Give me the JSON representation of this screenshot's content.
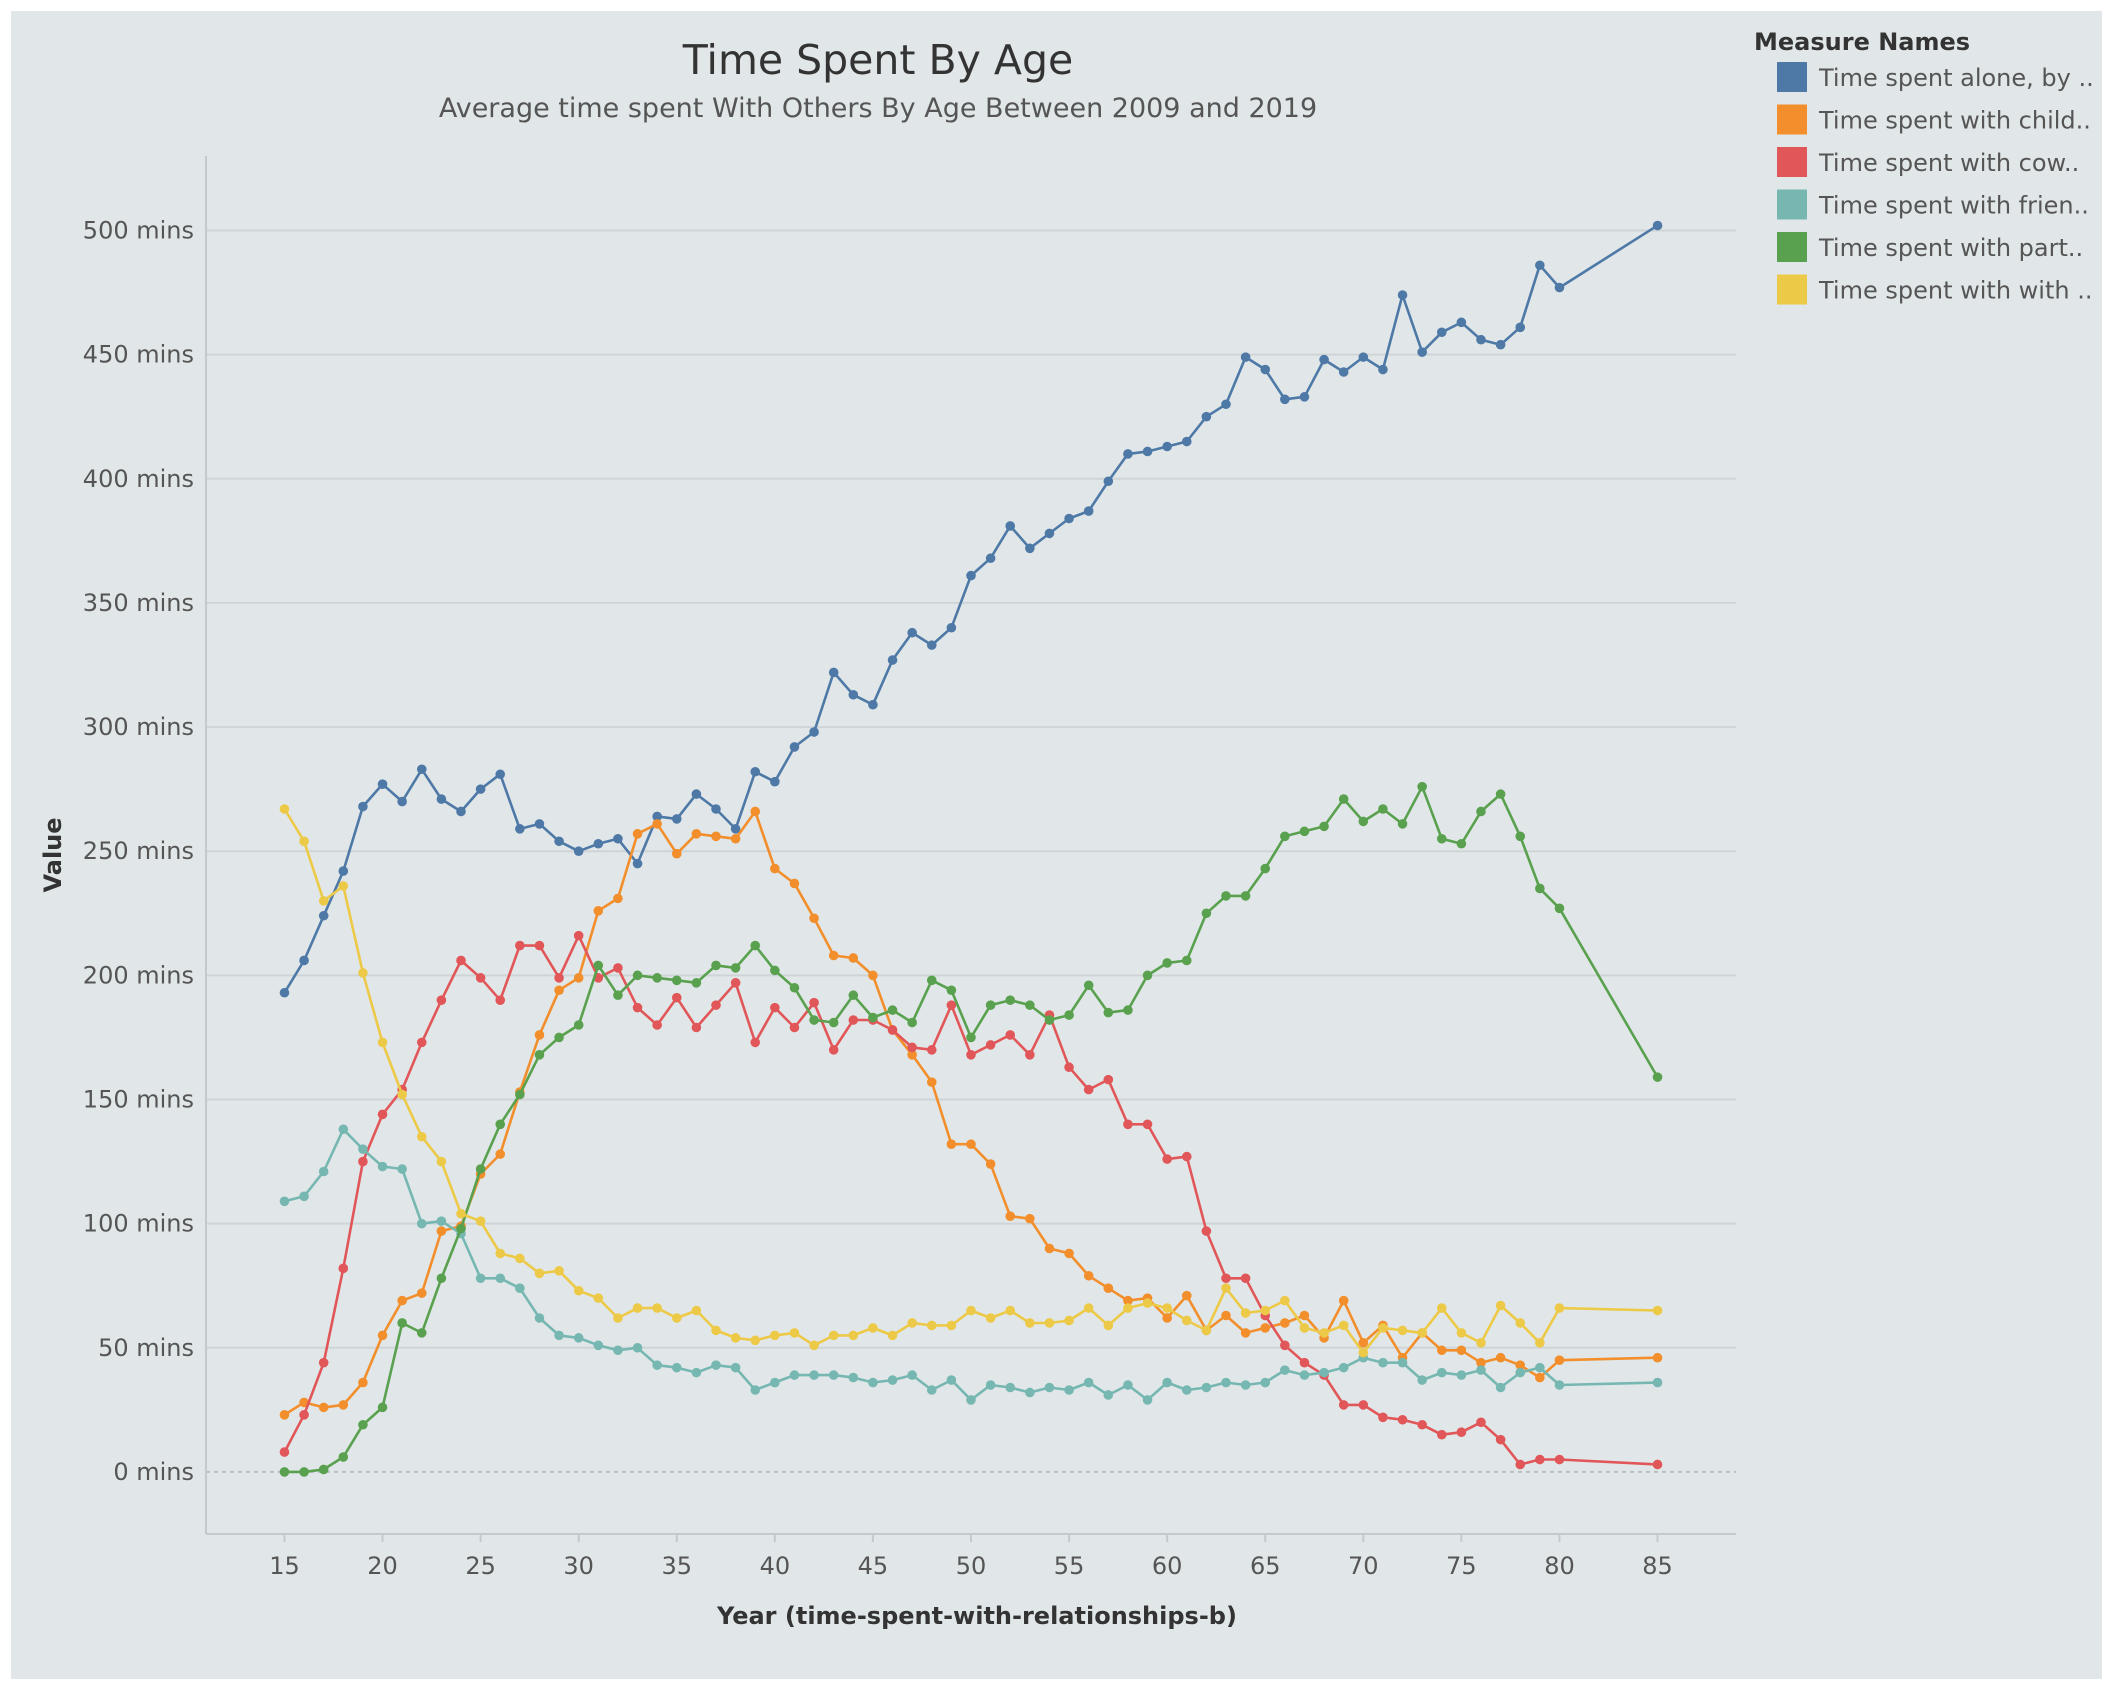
{
  "chart_data": {
    "type": "line",
    "title": "Time Spent By Age",
    "subtitle": "Average time spent With Others By Age Between 2009 and 2019",
    "xlabel": "Year (time-spent-with-relationships-b)",
    "ylabel": "Value",
    "xlim": [
      11,
      89
    ],
    "ylim": [
      -25,
      530
    ],
    "x_ticks": [
      15,
      20,
      25,
      30,
      35,
      40,
      45,
      50,
      55,
      60,
      65,
      70,
      75,
      80,
      85
    ],
    "y_ticks": [
      {
        "value": 0,
        "label": "0 mins"
      },
      {
        "value": 50,
        "label": "50 mins"
      },
      {
        "value": 100,
        "label": "100 mins"
      },
      {
        "value": 150,
        "label": "150 mins"
      },
      {
        "value": 200,
        "label": "200 mins"
      },
      {
        "value": 250,
        "label": "250 mins"
      },
      {
        "value": 300,
        "label": "300 mins"
      },
      {
        "value": 350,
        "label": "350 mins"
      },
      {
        "value": 400,
        "label": "400 mins"
      },
      {
        "value": 450,
        "label": "450 mins"
      },
      {
        "value": 500,
        "label": "500 mins"
      }
    ],
    "grid": true,
    "legend_position": "top-right",
    "legend_title": "Measure Names",
    "x": [
      15,
      16,
      17,
      18,
      19,
      20,
      21,
      22,
      23,
      24,
      25,
      26,
      27,
      28,
      29,
      30,
      31,
      32,
      33,
      34,
      35,
      36,
      37,
      38,
      39,
      40,
      41,
      42,
      43,
      44,
      45,
      46,
      47,
      48,
      49,
      50,
      51,
      52,
      53,
      54,
      55,
      56,
      57,
      58,
      59,
      60,
      61,
      62,
      63,
      64,
      65,
      66,
      67,
      68,
      69,
      70,
      71,
      72,
      73,
      74,
      75,
      76,
      77,
      78,
      79,
      80,
      85
    ],
    "series": [
      {
        "name": "Time spent alone, by ..",
        "color": "#4e79a7",
        "values": [
          193,
          206,
          224,
          242,
          268,
          277,
          270,
          283,
          271,
          266,
          275,
          281,
          259,
          261,
          254,
          250,
          253,
          255,
          245,
          264,
          263,
          273,
          267,
          259,
          282,
          278,
          292,
          298,
          322,
          313,
          309,
          327,
          338,
          333,
          340,
          361,
          368,
          381,
          372,
          378,
          384,
          387,
          399,
          410,
          411,
          413,
          415,
          425,
          430,
          449,
          444,
          432,
          433,
          448,
          443,
          449,
          444,
          474,
          451,
          459,
          463,
          456,
          454,
          461,
          486,
          477,
          502
        ]
      },
      {
        "name": "Time spent with child..",
        "color": "#f28e2b",
        "values": [
          23,
          28,
          26,
          27,
          36,
          55,
          69,
          72,
          97,
          99,
          120,
          128,
          153,
          176,
          194,
          199,
          226,
          231,
          257,
          261,
          249,
          257,
          256,
          255,
          266,
          243,
          237,
          223,
          208,
          207,
          200,
          178,
          168,
          157,
          132,
          132,
          124,
          103,
          102,
          90,
          88,
          79,
          74,
          69,
          70,
          62,
          71,
          57,
          63,
          56,
          58,
          60,
          63,
          54,
          69,
          52,
          59,
          46,
          56,
          49,
          49,
          44,
          46,
          43,
          38,
          45,
          46
        ]
      },
      {
        "name": "Time spent with cow..",
        "color": "#e15759",
        "values": [
          8,
          23,
          44,
          82,
          125,
          144,
          154,
          173,
          190,
          206,
          199,
          190,
          212,
          212,
          199,
          216,
          199,
          203,
          187,
          180,
          191,
          179,
          188,
          197,
          173,
          187,
          179,
          189,
          170,
          182,
          182,
          178,
          171,
          170,
          188,
          168,
          172,
          176,
          168,
          184,
          163,
          154,
          158,
          140,
          140,
          126,
          127,
          97,
          78,
          78,
          63,
          51,
          44,
          39,
          27,
          27,
          22,
          21,
          19,
          15,
          16,
          20,
          13,
          3,
          5,
          5,
          3
        ]
      },
      {
        "name": "Time spent with frien..",
        "color": "#76b7b2",
        "values": [
          109,
          111,
          121,
          138,
          130,
          123,
          122,
          100,
          101,
          96,
          78,
          78,
          74,
          62,
          55,
          54,
          51,
          49,
          50,
          43,
          42,
          40,
          43,
          42,
          33,
          36,
          39,
          39,
          39,
          38,
          36,
          37,
          39,
          33,
          37,
          29,
          35,
          34,
          32,
          34,
          33,
          36,
          31,
          35,
          29,
          36,
          33,
          34,
          36,
          35,
          36,
          41,
          39,
          40,
          42,
          46,
          44,
          44,
          37,
          40,
          39,
          41,
          34,
          40,
          42,
          35,
          36
        ]
      },
      {
        "name": "Time spent with part..",
        "color": "#59a14f",
        "values": [
          0,
          0,
          1,
          6,
          19,
          26,
          60,
          56,
          78,
          98,
          122,
          140,
          152,
          168,
          175,
          180,
          204,
          192,
          200,
          199,
          198,
          197,
          204,
          203,
          212,
          202,
          195,
          182,
          181,
          192,
          183,
          186,
          181,
          198,
          194,
          175,
          188,
          190,
          188,
          182,
          184,
          196,
          185,
          186,
          200,
          205,
          206,
          225,
          232,
          232,
          243,
          256,
          258,
          260,
          271,
          262,
          267,
          261,
          276,
          255,
          253,
          266,
          273,
          256,
          235,
          227,
          159
        ]
      },
      {
        "name": "Time spent with with ..",
        "color": "#edc948",
        "values": [
          267,
          254,
          230,
          236,
          201,
          173,
          152,
          135,
          125,
          104,
          101,
          88,
          86,
          80,
          81,
          73,
          70,
          62,
          66,
          66,
          62,
          65,
          57,
          54,
          53,
          55,
          56,
          51,
          55,
          55,
          58,
          55,
          60,
          59,
          59,
          65,
          62,
          65,
          60,
          60,
          61,
          66,
          59,
          66,
          68,
          66,
          61,
          57,
          74,
          64,
          65,
          69,
          58,
          56,
          59,
          48,
          58,
          57,
          56,
          66,
          56,
          52,
          67,
          60,
          52,
          66,
          65
        ]
      }
    ]
  }
}
